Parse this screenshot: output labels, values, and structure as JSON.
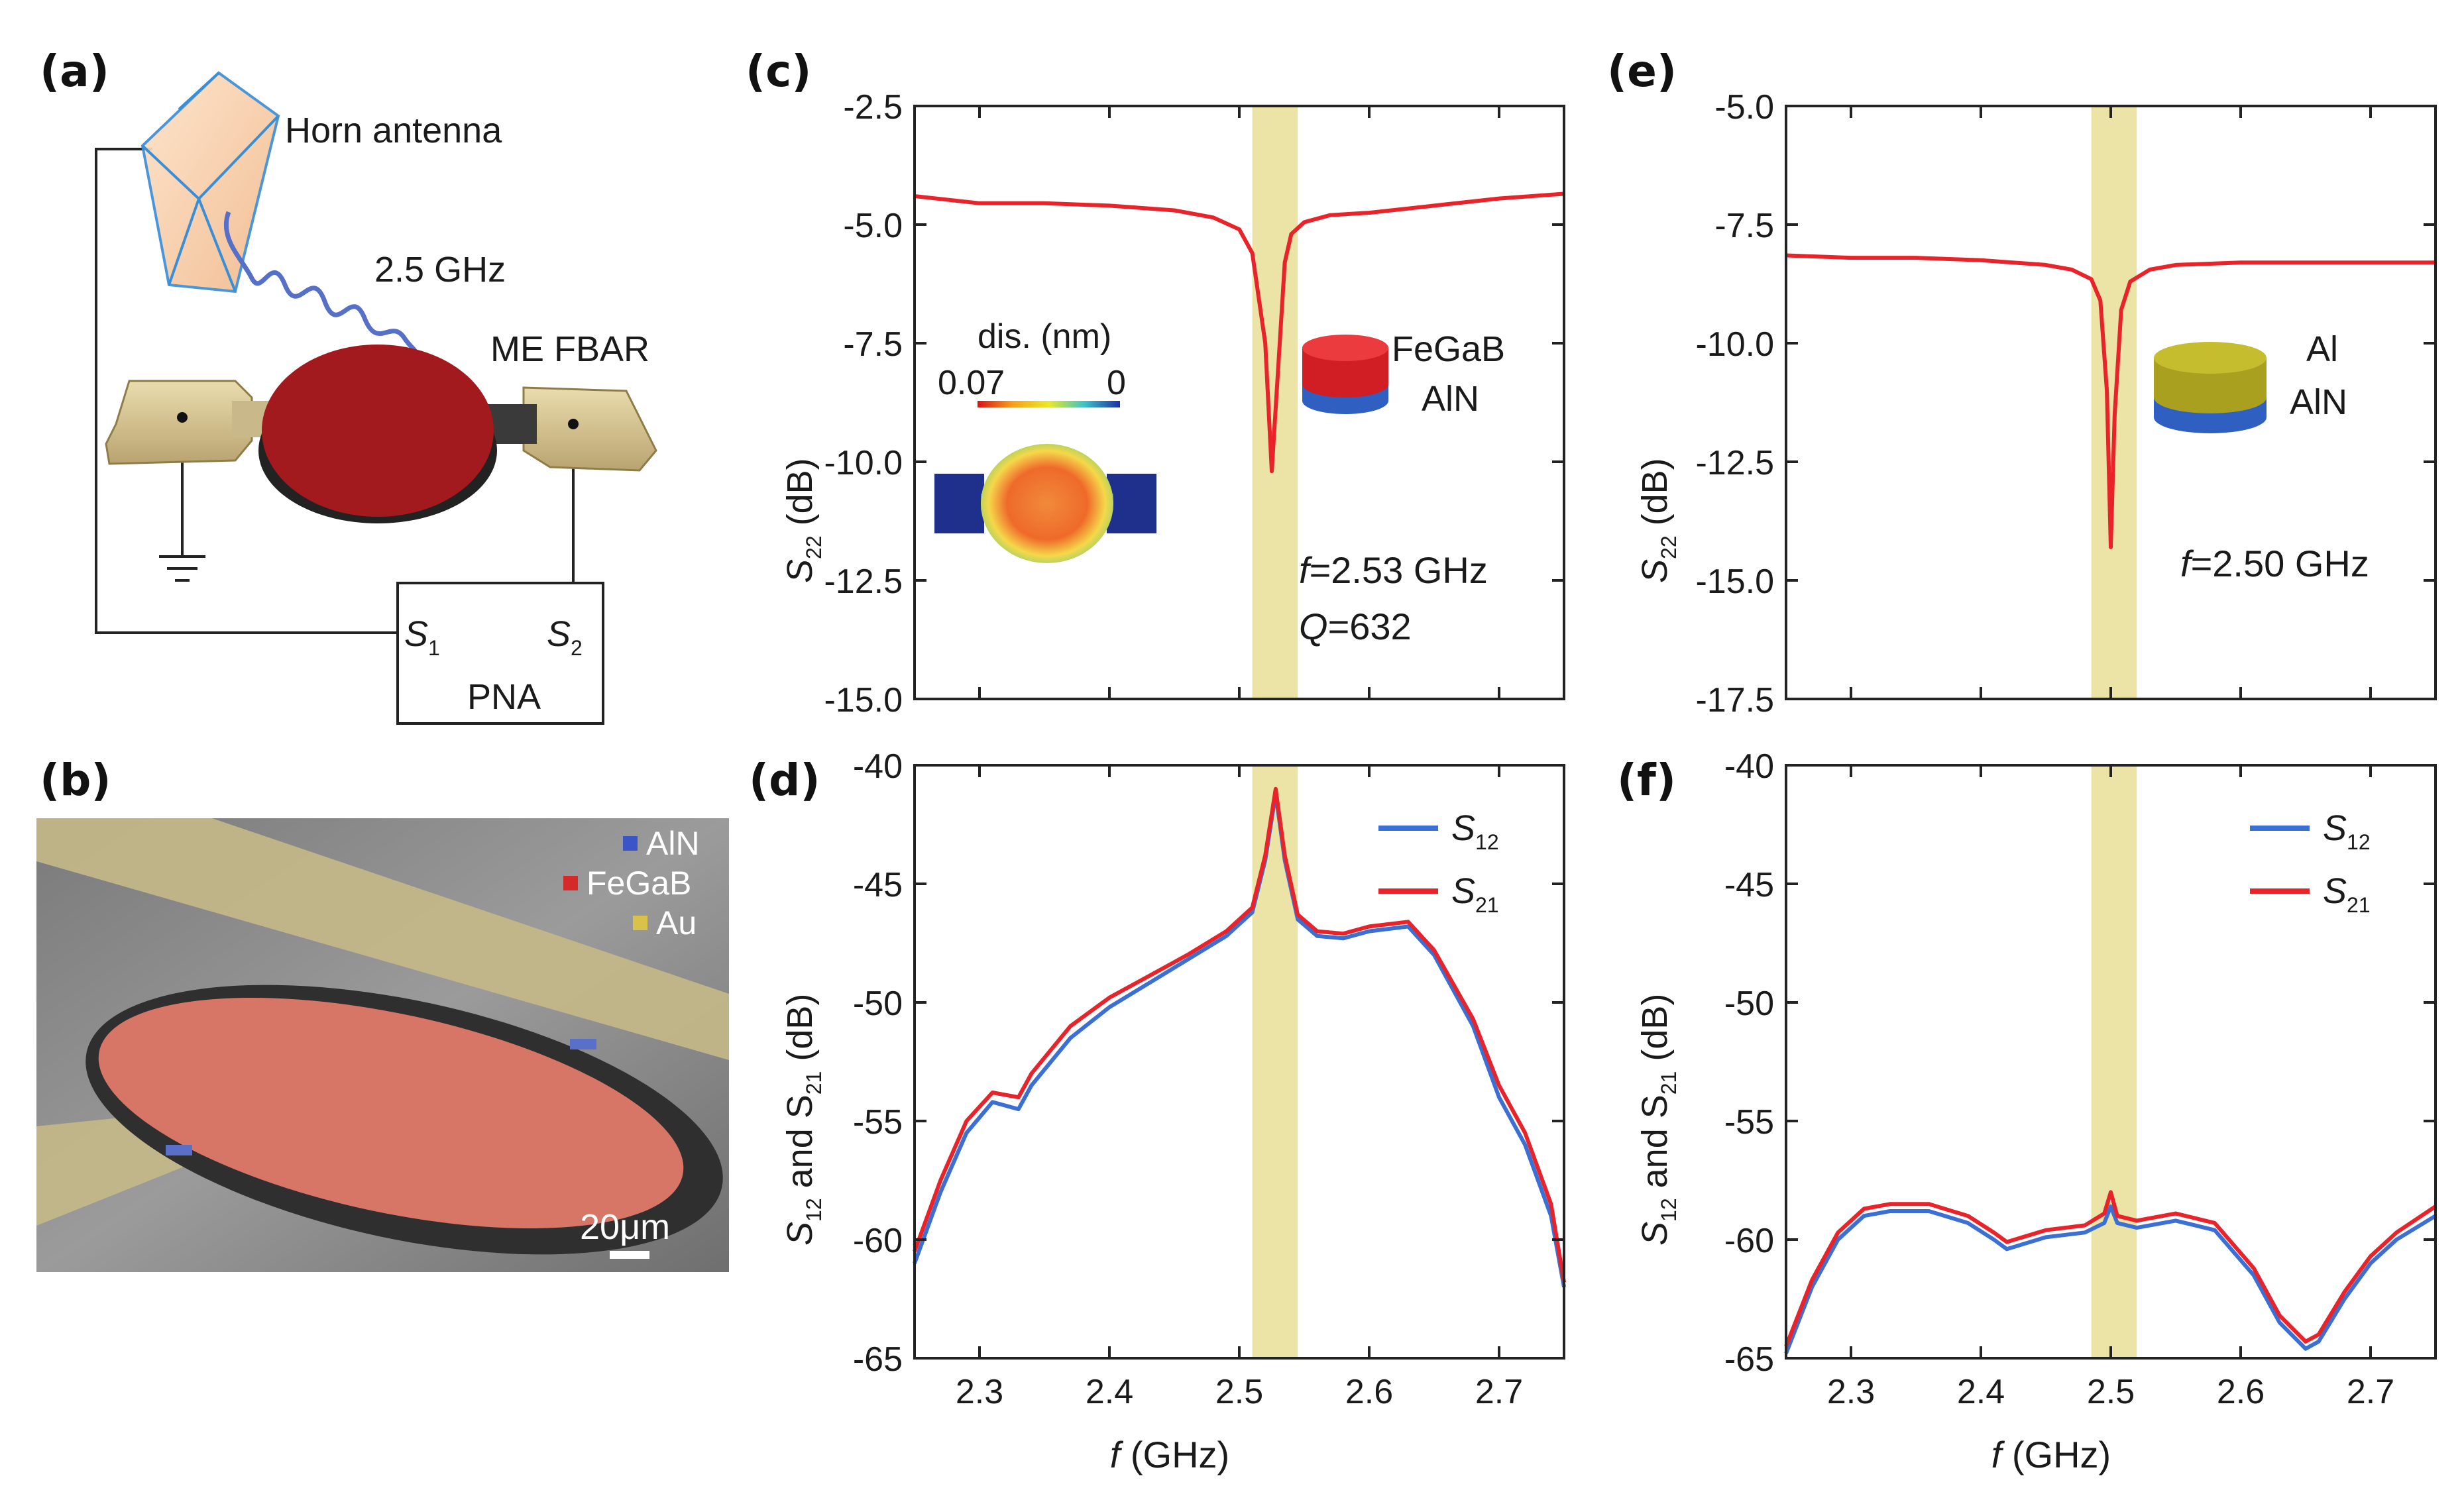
{
  "panel_labels": {
    "a": "(a)",
    "b": "(b)",
    "c": "(c)",
    "d": "(d)",
    "e": "(e)",
    "f": "(f)"
  },
  "schematic": {
    "horn_label": "Horn antenna",
    "freq_label": "2.5 GHz",
    "device_label": "ME FBAR",
    "s1": "S",
    "s1_sub": "1",
    "s2": "S",
    "s2_sub": "2",
    "pna": "PNA"
  },
  "sem": {
    "legend": [
      {
        "label": "AlN",
        "color": "#3b55c8"
      },
      {
        "label": "FeGaB",
        "color": "#d42a2a"
      },
      {
        "label": "Au",
        "color": "#d9c24a"
      }
    ],
    "scale_bar": "20μm"
  },
  "colors": {
    "red": "#e8232a",
    "blue": "#3b6fd4",
    "highlight": "#ece3a6"
  },
  "chart_data": [
    {
      "id": "c",
      "type": "line",
      "ylabel": "S",
      "ylabel_sub": "22",
      "ylabel_tail": " (dB)",
      "ylim": [
        -15.0,
        -2.5
      ],
      "yticks": [
        -2.5,
        -5.0,
        -7.5,
        -10.0,
        -12.5,
        -15.0
      ],
      "ytick_labels": [
        "-2.5",
        "-5.0",
        "-7.5",
        "-10.0",
        "-12.5",
        "-15.0"
      ],
      "xlim": [
        2.25,
        2.75
      ],
      "xticks": [
        2.3,
        2.4,
        2.5,
        2.6,
        2.7
      ],
      "xtick_labels": [],
      "highlight_band": [
        2.51,
        2.545
      ],
      "series": [
        {
          "name": "S22",
          "color": "#e8232a",
          "x": [
            2.25,
            2.3,
            2.35,
            2.4,
            2.45,
            2.48,
            2.5,
            2.51,
            2.52,
            2.525,
            2.53,
            2.535,
            2.54,
            2.55,
            2.57,
            2.6,
            2.65,
            2.7,
            2.75
          ],
          "y": [
            -4.4,
            -4.55,
            -4.55,
            -4.6,
            -4.7,
            -4.85,
            -5.1,
            -5.6,
            -7.5,
            -10.2,
            -8.0,
            -5.8,
            -5.2,
            -4.95,
            -4.8,
            -4.75,
            -4.6,
            -4.45,
            -4.35
          ]
        }
      ],
      "annotations": [
        "f=2.53 GHz",
        "Q=632"
      ],
      "inset_labels": {
        "dis": "dis. (nm)",
        "max": "0.07",
        "min": "0",
        "top_material": "FeGaB",
        "bottom_material": "AlN"
      }
    },
    {
      "id": "d",
      "type": "line",
      "ylabel": "S",
      "ylabel_sub": "12",
      "ylabel_mid": " and S",
      "ylabel_sub2": "21",
      "ylabel_tail": " (dB)",
      "ylim": [
        -65,
        -40
      ],
      "yticks": [
        -40,
        -45,
        -50,
        -55,
        -60,
        -65
      ],
      "ytick_labels": [
        "-40",
        "-45",
        "-50",
        "-55",
        "-60",
        "-65"
      ],
      "xlim": [
        2.25,
        2.75
      ],
      "xticks": [
        2.3,
        2.4,
        2.5,
        2.6,
        2.7
      ],
      "xtick_labels": [
        "2.3",
        "2.4",
        "2.5",
        "2.6",
        "2.7"
      ],
      "xlabel": "f",
      "xlabel_tail": " (GHz)",
      "highlight_band": [
        2.51,
        2.545
      ],
      "legend": [
        {
          "label": "S",
          "sub": "12",
          "color": "#3b6fd4"
        },
        {
          "label": "S",
          "sub": "21",
          "color": "#e8232a"
        }
      ],
      "series": [
        {
          "name": "S12",
          "color": "#3b6fd4",
          "x": [
            2.25,
            2.27,
            2.29,
            2.31,
            2.33,
            2.34,
            2.37,
            2.4,
            2.43,
            2.46,
            2.49,
            2.51,
            2.52,
            2.528,
            2.535,
            2.545,
            2.56,
            2.58,
            2.6,
            2.63,
            2.65,
            2.68,
            2.7,
            2.72,
            2.74,
            2.75
          ],
          "y": [
            -61,
            -58,
            -55.5,
            -54.2,
            -54.5,
            -53.5,
            -51.5,
            -50.2,
            -49.2,
            -48.2,
            -47.2,
            -46.2,
            -44.0,
            -41.2,
            -44.0,
            -46.5,
            -47.2,
            -47.3,
            -47.0,
            -46.8,
            -48.0,
            -51.0,
            -54.0,
            -56.0,
            -59.0,
            -62.0
          ]
        },
        {
          "name": "S21",
          "color": "#e8232a",
          "x": [
            2.25,
            2.27,
            2.29,
            2.31,
            2.33,
            2.34,
            2.37,
            2.4,
            2.43,
            2.46,
            2.49,
            2.51,
            2.52,
            2.528,
            2.535,
            2.545,
            2.56,
            2.58,
            2.6,
            2.63,
            2.65,
            2.68,
            2.7,
            2.72,
            2.74,
            2.75
          ],
          "y": [
            -60.5,
            -57.5,
            -55.0,
            -53.8,
            -54.0,
            -53.0,
            -51.0,
            -49.8,
            -48.9,
            -48.0,
            -47.0,
            -46.0,
            -43.8,
            -41.0,
            -43.8,
            -46.3,
            -47.0,
            -47.1,
            -46.8,
            -46.6,
            -47.8,
            -50.7,
            -53.5,
            -55.5,
            -58.5,
            -61.8
          ]
        }
      ]
    },
    {
      "id": "e",
      "type": "line",
      "ylabel": "S",
      "ylabel_sub": "22",
      "ylabel_tail": " (dB)",
      "ylim": [
        -17.5,
        -5.0
      ],
      "yticks": [
        -5.0,
        -7.5,
        -10.0,
        -12.5,
        -15.0,
        -17.5
      ],
      "ytick_labels": [
        "-5.0",
        "-7.5",
        "-10.0",
        "-12.5",
        "-15.0",
        "-17.5"
      ],
      "xlim": [
        2.25,
        2.75
      ],
      "xticks": [
        2.3,
        2.4,
        2.5,
        2.6,
        2.7
      ],
      "xtick_labels": [],
      "highlight_band": [
        2.485,
        2.52
      ],
      "series": [
        {
          "name": "S22",
          "color": "#e8232a",
          "x": [
            2.25,
            2.3,
            2.35,
            2.4,
            2.45,
            2.47,
            2.485,
            2.492,
            2.497,
            2.5,
            2.503,
            2.508,
            2.515,
            2.53,
            2.55,
            2.6,
            2.65,
            2.7,
            2.75
          ],
          "y": [
            -8.15,
            -8.2,
            -8.2,
            -8.25,
            -8.35,
            -8.45,
            -8.65,
            -9.1,
            -11.0,
            -14.3,
            -11.5,
            -9.3,
            -8.7,
            -8.45,
            -8.35,
            -8.3,
            -8.3,
            -8.3,
            -8.3
          ]
        }
      ],
      "annotations": [
        "f=2.50 GHz"
      ],
      "inset_labels": {
        "top_material": "Al",
        "bottom_material": "AlN"
      }
    },
    {
      "id": "f",
      "type": "line",
      "ylabel": "S",
      "ylabel_sub": "12",
      "ylabel_mid": " and S",
      "ylabel_sub2": "21",
      "ylabel_tail": " (dB)",
      "ylim": [
        -65,
        -40
      ],
      "yticks": [
        -40,
        -45,
        -50,
        -55,
        -60,
        -65
      ],
      "ytick_labels": [
        "-40",
        "-45",
        "-50",
        "-55",
        "-60",
        "-65"
      ],
      "xlim": [
        2.25,
        2.75
      ],
      "xticks": [
        2.3,
        2.4,
        2.5,
        2.6,
        2.7
      ],
      "xtick_labels": [
        "2.3",
        "2.4",
        "2.5",
        "2.6",
        "2.7"
      ],
      "xlabel": "f",
      "xlabel_tail": " (GHz)",
      "highlight_band": [
        2.485,
        2.52
      ],
      "legend": [
        {
          "label": "S",
          "sub": "12",
          "color": "#3b6fd4"
        },
        {
          "label": "S",
          "sub": "21",
          "color": "#e8232a"
        }
      ],
      "series": [
        {
          "name": "S12",
          "color": "#3b6fd4",
          "x": [
            2.25,
            2.27,
            2.29,
            2.31,
            2.33,
            2.36,
            2.39,
            2.41,
            2.42,
            2.45,
            2.48,
            2.495,
            2.5,
            2.505,
            2.52,
            2.55,
            2.58,
            2.61,
            2.63,
            2.65,
            2.66,
            2.68,
            2.7,
            2.72,
            2.75
          ],
          "y": [
            -64.8,
            -62.0,
            -60.0,
            -59.0,
            -58.8,
            -58.8,
            -59.3,
            -60.0,
            -60.4,
            -59.9,
            -59.7,
            -59.3,
            -58.6,
            -59.3,
            -59.5,
            -59.2,
            -59.6,
            -61.5,
            -63.5,
            -64.6,
            -64.3,
            -62.5,
            -61.0,
            -60.0,
            -59.0
          ]
        },
        {
          "name": "S21",
          "color": "#e8232a",
          "x": [
            2.25,
            2.27,
            2.29,
            2.31,
            2.33,
            2.36,
            2.39,
            2.41,
            2.42,
            2.45,
            2.48,
            2.495,
            2.5,
            2.505,
            2.52,
            2.55,
            2.58,
            2.61,
            2.63,
            2.65,
            2.66,
            2.68,
            2.7,
            2.72,
            2.75
          ],
          "y": [
            -64.5,
            -61.7,
            -59.7,
            -58.7,
            -58.5,
            -58.5,
            -59.0,
            -59.7,
            -60.1,
            -59.6,
            -59.4,
            -58.9,
            -58.0,
            -59.0,
            -59.2,
            -58.9,
            -59.3,
            -61.2,
            -63.2,
            -64.3,
            -64.0,
            -62.2,
            -60.7,
            -59.7,
            -58.6
          ]
        }
      ]
    }
  ]
}
